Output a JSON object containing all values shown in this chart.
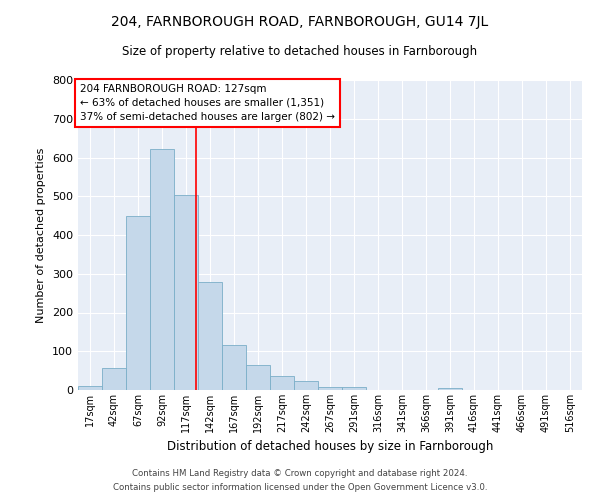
{
  "title_line1": "204, FARNBOROUGH ROAD, FARNBOROUGH, GU14 7JL",
  "title_line2": "Size of property relative to detached houses in Farnborough",
  "xlabel": "Distribution of detached houses by size in Farnborough",
  "ylabel": "Number of detached properties",
  "footnote1": "Contains HM Land Registry data © Crown copyright and database right 2024.",
  "footnote2": "Contains public sector information licensed under the Open Government Licence v3.0.",
  "annotation_line1": "204 FARNBOROUGH ROAD: 127sqm",
  "annotation_line2": "← 63% of detached houses are smaller (1,351)",
  "annotation_line3": "37% of semi-detached houses are larger (802) →",
  "bar_color": "#c5d8ea",
  "bar_edge_color": "#7aaec8",
  "bg_color": "#e8eef7",
  "grid_color": "white",
  "marker_line_color": "red",
  "marker_x": 127,
  "categories": [
    "17sqm",
    "42sqm",
    "67sqm",
    "92sqm",
    "117sqm",
    "142sqm",
    "167sqm",
    "192sqm",
    "217sqm",
    "242sqm",
    "267sqm",
    "291sqm",
    "316sqm",
    "341sqm",
    "366sqm",
    "391sqm",
    "416sqm",
    "441sqm",
    "466sqm",
    "491sqm",
    "516sqm"
  ],
  "bin_width": 25,
  "bin_starts": [
    4,
    29,
    54,
    79,
    104,
    129,
    154,
    179,
    204,
    229,
    254,
    279,
    304,
    329,
    354,
    379,
    404,
    429,
    454,
    479,
    504
  ],
  "values": [
    11,
    58,
    449,
    621,
    503,
    280,
    115,
    64,
    37,
    22,
    9,
    9,
    0,
    0,
    0,
    5,
    0,
    0,
    0,
    0,
    0
  ],
  "ylim": [
    0,
    800
  ],
  "yticks": [
    0,
    100,
    200,
    300,
    400,
    500,
    600,
    700,
    800
  ],
  "xlim_min": 4,
  "xlim_max": 529
}
